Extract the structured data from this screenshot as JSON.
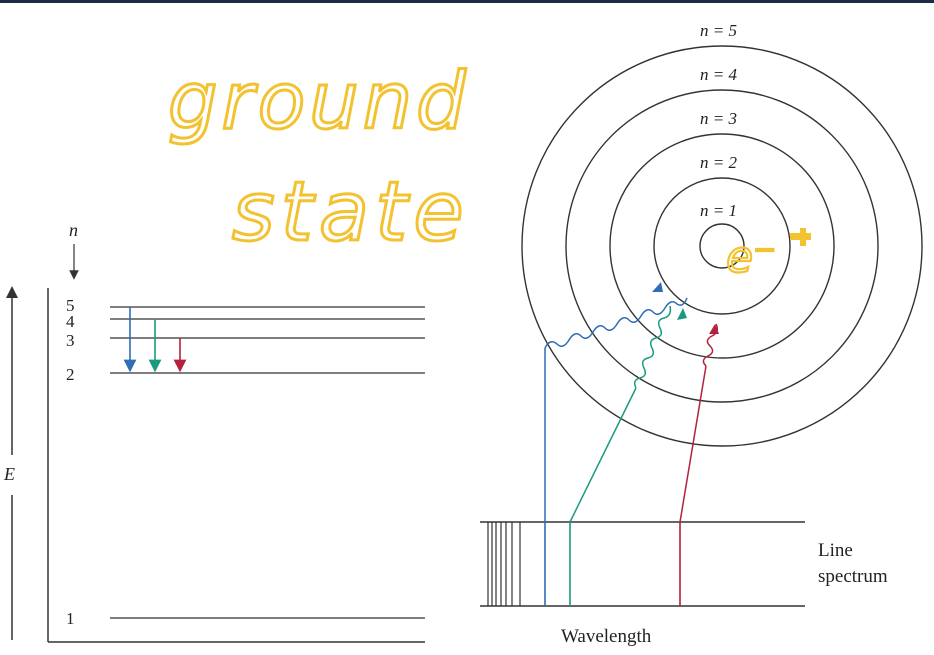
{
  "handwriting": {
    "line1": "ground",
    "line2": "state",
    "orbit_annotation": "e⁻",
    "color": "#F2C230"
  },
  "energy_diagram": {
    "axis_label": "E",
    "n_label": "n",
    "levels": [
      {
        "n": "5",
        "label": "5"
      },
      {
        "n": "4",
        "label": "4"
      },
      {
        "n": "3",
        "label": "3"
      },
      {
        "n": "2",
        "label": "2"
      },
      {
        "n": "1",
        "label": "1"
      }
    ],
    "transitions": [
      {
        "from": "5",
        "to": "2",
        "color": "#2F6DB5"
      },
      {
        "from": "4",
        "to": "2",
        "color": "#1A9A7E"
      },
      {
        "from": "3",
        "to": "2",
        "color": "#B3213D"
      }
    ]
  },
  "bohr_model": {
    "orbit_labels": [
      "n = 5",
      "n = 4",
      "n = 3",
      "n = 2",
      "n = 1"
    ],
    "photon_colors": [
      "#2F6DB5",
      "#1A9A7E",
      "#B3213D"
    ]
  },
  "spectrum": {
    "label_line1": "Line",
    "label_line2": "spectrum",
    "x_label": "Wavelength"
  },
  "colors": {
    "blue": "#2F6DB5",
    "teal": "#1A9A7E",
    "red": "#B3213D",
    "line": "#333333",
    "highlight": "#F2C230"
  }
}
